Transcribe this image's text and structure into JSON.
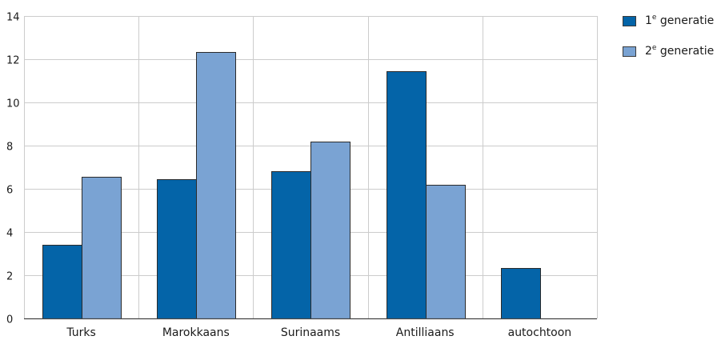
{
  "colors": {
    "series_1": "#0464a8",
    "series_2": "#7aa3d3",
    "grid": "#cccccc",
    "axis": "#444444",
    "bar_stroke": "#2b2b2b",
    "text": "#1a1a1a"
  },
  "legend": [
    {
      "number": "1",
      "suffix": "e",
      "word": "generatie"
    },
    {
      "number": "2",
      "suffix": "e",
      "word": "generatie"
    }
  ],
  "chart_data": {
    "type": "bar",
    "title": "",
    "xlabel": "",
    "ylabel": "",
    "categories": [
      "Turks",
      "Marokkaans",
      "Surinaams",
      "Antilliaans",
      "autochtoon"
    ],
    "series": [
      {
        "name": "1e generatie",
        "values": [
          3.4,
          6.45,
          6.8,
          11.45,
          2.35
        ]
      },
      {
        "name": "2e generatie",
        "values": [
          6.55,
          12.35,
          8.2,
          6.2,
          null
        ]
      }
    ],
    "ylim": [
      0,
      14
    ],
    "yticks": [
      "0",
      "2",
      "4",
      "6",
      "8",
      "10",
      "12",
      "14"
    ],
    "grid": true,
    "legend_position": "top-right"
  }
}
